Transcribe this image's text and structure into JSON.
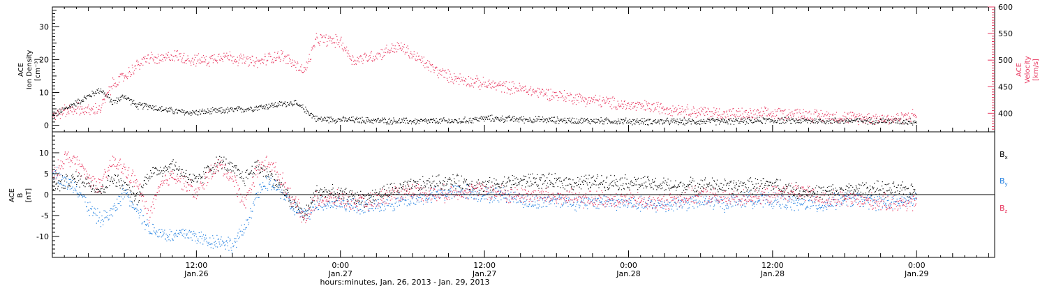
{
  "colors": {
    "black": "#000000",
    "red": "#e8375f",
    "blue": "#1f7ee0"
  },
  "x_axis": {
    "tick_labels": [
      {
        "time": "12:00",
        "date": "Jan.26",
        "hours": 12
      },
      {
        "time": "0:00",
        "date": "Jan.27",
        "hours": 24
      },
      {
        "time": "12:00",
        "date": "Jan.27",
        "hours": 36
      },
      {
        "time": "0:00",
        "date": "Jan.28",
        "hours": 48
      },
      {
        "time": "12:00",
        "date": "Jan.28",
        "hours": 60
      },
      {
        "time": "0:00",
        "date": "Jan.29",
        "hours": 72
      }
    ],
    "title": "hours:minutes, Jan. 26, 2013 - Jan. 29, 2013"
  },
  "chart_data": [
    {
      "type": "scatter",
      "panel": "top",
      "xlim": [
        0,
        78.5
      ],
      "left_axis": {
        "label_lines": [
          "ACE",
          "Ion Density",
          "[cm⁻³]"
        ],
        "ylim": [
          -2,
          36
        ],
        "ticks": [
          0,
          10,
          20,
          30
        ]
      },
      "right_axis": {
        "label_lines": [
          "ACE",
          "Velocity",
          "[km/s]"
        ],
        "ylim": [
          365,
          600
        ],
        "ticks": [
          400,
          450,
          500,
          550,
          600
        ]
      },
      "series": [
        {
          "name": "Ion Density",
          "axis": "left",
          "color": "black",
          "x": [
            0,
            1,
            2,
            3,
            4,
            5,
            6,
            7,
            8,
            9,
            10,
            11,
            12,
            14,
            16,
            18,
            20,
            21,
            22,
            24,
            26,
            30,
            34,
            36,
            40,
            44,
            48,
            52,
            56,
            60,
            64,
            66,
            68,
            70,
            72
          ],
          "y": [
            3,
            5,
            7,
            9,
            11,
            7,
            9,
            6,
            6,
            5,
            4.5,
            4,
            4,
            4.5,
            5,
            6,
            7,
            5,
            2,
            1.8,
            1.6,
            1.3,
            1.4,
            2.2,
            1.8,
            1.5,
            1.3,
            1.2,
            1.3,
            1.6,
            1.4,
            1.5,
            1.5,
            1.4,
            1.2
          ],
          "spread": 1.2
        },
        {
          "name": "Velocity",
          "axis": "right",
          "color": "red",
          "x": [
            0,
            1,
            2,
            3,
            4,
            5,
            6,
            7,
            8,
            9,
            10,
            11,
            12,
            13,
            14,
            15,
            16,
            17,
            18,
            19,
            20,
            21,
            22,
            23,
            24,
            25,
            26,
            27,
            28,
            29,
            30,
            31,
            32,
            33,
            34,
            35,
            36,
            38,
            40,
            42,
            44,
            46,
            48,
            50,
            52,
            54,
            56,
            58,
            60,
            62,
            64,
            66,
            68,
            70,
            72
          ],
          "y": [
            395,
            405,
            410,
            405,
            410,
            455,
            470,
            490,
            505,
            500,
            510,
            505,
            500,
            500,
            510,
            505,
            500,
            495,
            505,
            510,
            495,
            480,
            540,
            538,
            535,
            500,
            505,
            510,
            520,
            525,
            510,
            495,
            480,
            470,
            465,
            460,
            455,
            450,
            442,
            435,
            428,
            422,
            415,
            412,
            408,
            403,
            400,
            398,
            400,
            400,
            396,
            393,
            392,
            390,
            398
          ],
          "spread": 14
        }
      ]
    },
    {
      "type": "scatter",
      "panel": "bottom",
      "xlim": [
        0,
        78.5
      ],
      "left_axis": {
        "label_lines": [
          "ACE",
          "B",
          "[nT]"
        ],
        "ylim": [
          -15,
          15
        ],
        "ticks": [
          -10,
          -5,
          0,
          5,
          10
        ]
      },
      "zero_line": 0,
      "series": [
        {
          "name": "Bx",
          "color": "black",
          "x": [
            0,
            1,
            2,
            3,
            4,
            5,
            6,
            7,
            8,
            9,
            10,
            11,
            12,
            13,
            14,
            15,
            16,
            17,
            18,
            19,
            20,
            21,
            22,
            24,
            26,
            28,
            30,
            32,
            34,
            36,
            38,
            40,
            42,
            44,
            46,
            48,
            50,
            52,
            54,
            56,
            58,
            60,
            62,
            64,
            66,
            68,
            70,
            72
          ],
          "y": [
            2,
            3,
            4,
            3,
            1,
            4,
            2,
            -1,
            5,
            6,
            7,
            5,
            3,
            6,
            8,
            6,
            4,
            7,
            5,
            2,
            -2,
            -5,
            1,
            0,
            -1,
            1,
            2,
            3,
            3,
            2,
            3,
            3.5,
            3,
            3,
            3.2,
            3,
            2.5,
            2,
            2.5,
            2,
            2.2,
            2.5,
            1,
            0.5,
            1,
            1.5,
            1.2,
            1
          ],
          "spread": 2.2
        },
        {
          "name": "By",
          "color": "blue",
          "x": [
            0,
            1,
            2,
            3,
            4,
            5,
            6,
            7,
            8,
            9,
            10,
            11,
            12,
            13,
            14,
            15,
            16,
            17,
            18,
            19,
            20,
            21,
            22,
            24,
            26,
            28,
            30,
            32,
            34,
            36,
            38,
            40,
            42,
            44,
            46,
            48,
            50,
            52,
            54,
            56,
            58,
            60,
            62,
            64,
            66,
            68,
            70,
            72
          ],
          "y": [
            6,
            3,
            2,
            -3,
            -6,
            -4,
            1,
            -3,
            -8,
            -9,
            -10,
            -9,
            -10,
            -11,
            -11,
            -12,
            -8,
            0,
            3,
            1,
            -3,
            -5,
            -2,
            -2,
            -3,
            -2,
            -1,
            0,
            1,
            0,
            0,
            -2,
            -1,
            -2,
            -1.5,
            -2,
            -2.5,
            -2,
            -1.5,
            -2,
            -1,
            -1.5,
            -2,
            -2.5,
            -1,
            -1.5,
            -2,
            -1
          ],
          "spread": 2.2
        },
        {
          "name": "Bz",
          "color": "red",
          "x": [
            0,
            1,
            2,
            3,
            4,
            5,
            6,
            7,
            8,
            9,
            10,
            11,
            12,
            13,
            14,
            15,
            16,
            17,
            18,
            19,
            20,
            21,
            22,
            24,
            26,
            28,
            30,
            32,
            34,
            36,
            38,
            40,
            42,
            44,
            46,
            48,
            50,
            52,
            54,
            56,
            58,
            60,
            62,
            64,
            66,
            68,
            70,
            72
          ],
          "y": [
            4,
            9,
            8,
            4,
            2,
            8,
            6,
            3,
            -5,
            2,
            5,
            3,
            0,
            5,
            7,
            4,
            -2,
            6,
            8,
            4,
            -1,
            -6,
            -1,
            -1,
            -2,
            0,
            1,
            0,
            1,
            1,
            0,
            0,
            -0.5,
            -1,
            -1,
            -1,
            -2,
            -1,
            0,
            -1,
            -0.5,
            0,
            1,
            -1,
            -1,
            -1.5,
            -2,
            -2
          ],
          "spread": 2.4
        }
      ],
      "legend": [
        {
          "label": "B",
          "sub": "x",
          "color": "black"
        },
        {
          "label": "B",
          "sub": "y",
          "color": "blue"
        },
        {
          "label": "B",
          "sub": "z",
          "color": "red"
        }
      ]
    }
  ]
}
